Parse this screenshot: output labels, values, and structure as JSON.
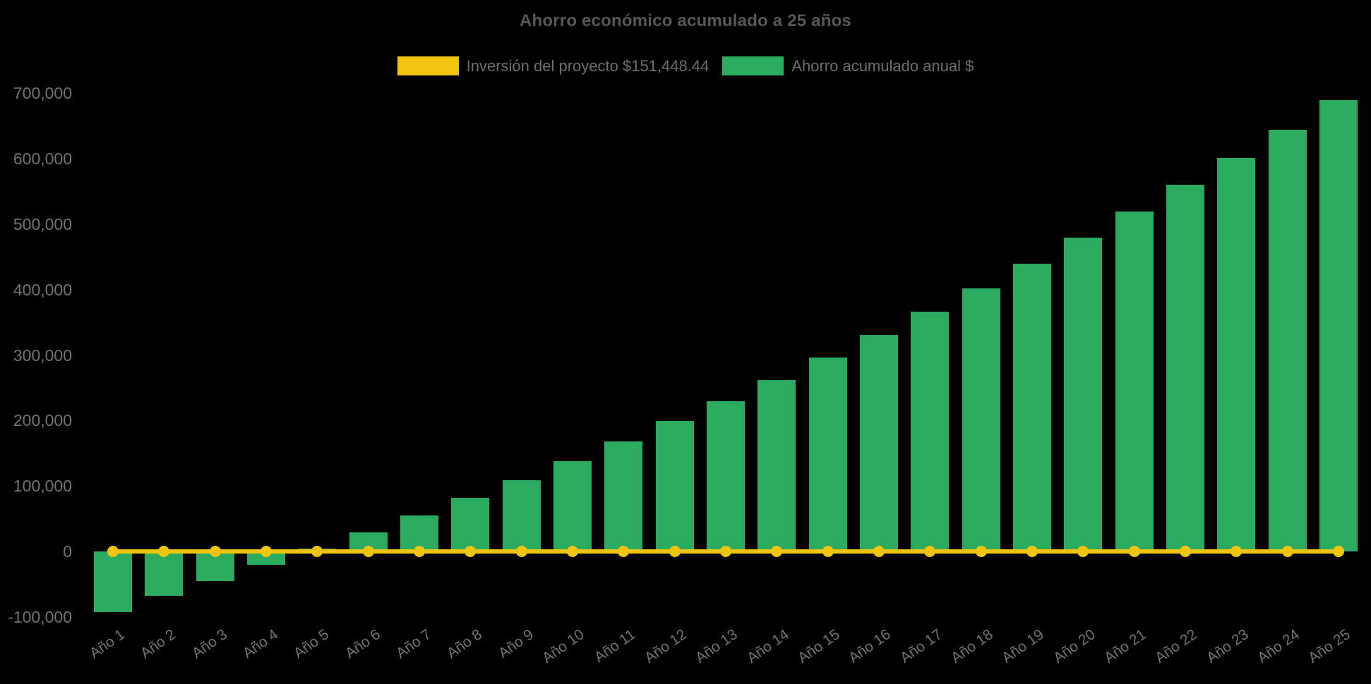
{
  "title": "Ahorro económico acumulado a 25 años",
  "legend": {
    "items": [
      {
        "id": "investment",
        "label": "Inversión del proyecto $151,448.44",
        "color": "#f1c40f"
      },
      {
        "id": "savings",
        "label": "Ahorro acumulado anual $",
        "color": "#2aab60"
      }
    ]
  },
  "chart_data": {
    "type": "bar",
    "title": "Ahorro económico acumulado a 25 años",
    "categories": [
      "Año 1",
      "Año 2",
      "Año 3",
      "Año 4",
      "Año 5",
      "Año 6",
      "Año 7",
      "Año 8",
      "Año 9",
      "Año 10",
      "Año 11",
      "Año 12",
      "Año 13",
      "Año 14",
      "Año 15",
      "Año 16",
      "Año 17",
      "Año 18",
      "Año 19",
      "Año 20",
      "Año 21",
      "Año 22",
      "Año 23",
      "Año 24",
      "Año 25"
    ],
    "series": [
      {
        "name": "Inversión del proyecto $151,448.44",
        "type": "line",
        "color": "#f1c40f",
        "marker": "circle",
        "values": [
          0,
          0,
          0,
          0,
          0,
          0,
          0,
          0,
          0,
          0,
          0,
          0,
          0,
          0,
          0,
          0,
          0,
          0,
          0,
          0,
          0,
          0,
          0,
          0,
          0
        ]
      },
      {
        "name": "Ahorro acumulado anual $",
        "type": "bar",
        "color": "#2aab60",
        "values": [
          -93000,
          -68000,
          -45000,
          -21000,
          4000,
          29000,
          55000,
          82000,
          109000,
          138000,
          168000,
          199000,
          230000,
          262000,
          296000,
          331000,
          366000,
          402000,
          440000,
          479000,
          519000,
          560000,
          601000,
          644000,
          690000
        ]
      }
    ],
    "xlabel": "",
    "ylabel": "",
    "y_ticks": [
      700000,
      600000,
      500000,
      400000,
      300000,
      200000,
      100000,
      0,
      -100000
    ],
    "y_tick_labels": [
      "700,000",
      "600,000",
      "500,000",
      "400,000",
      "300,000",
      "200,000",
      "100,000",
      "0",
      "-100,000"
    ],
    "ylim": [
      -100000,
      750000
    ],
    "grid": false,
    "legend_position": "top",
    "background": "#000000",
    "text_color": "#737373"
  }
}
